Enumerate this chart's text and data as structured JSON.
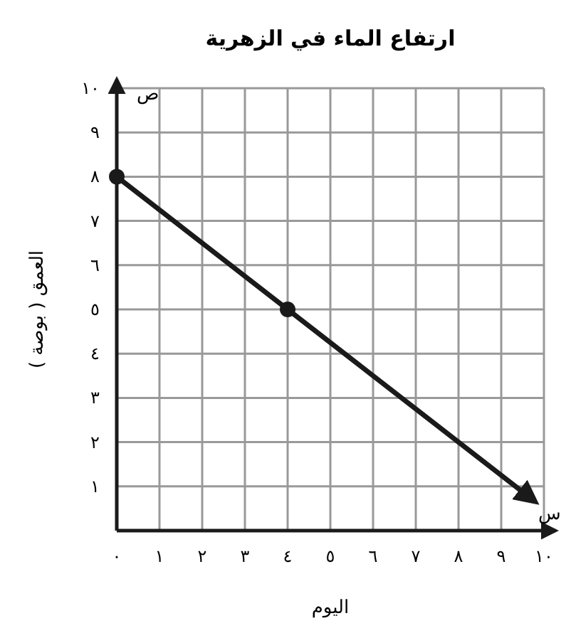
{
  "chart_data": {
    "type": "line",
    "title": "ارتفاع الماء في الزهرية",
    "xlabel": "اليوم",
    "ylabel": "العمق ( بوصة )",
    "annotations": [
      "ص",
      "س"
    ],
    "xlim": [
      0,
      10
    ],
    "ylim": [
      0,
      10
    ],
    "xticks": [
      {
        "value": 0,
        "label": "٠"
      },
      {
        "value": 1,
        "label": "١"
      },
      {
        "value": 2,
        "label": "٢"
      },
      {
        "value": 3,
        "label": "٣"
      },
      {
        "value": 4,
        "label": "٤"
      },
      {
        "value": 5,
        "label": "٥"
      },
      {
        "value": 6,
        "label": "٦"
      },
      {
        "value": 7,
        "label": "٧"
      },
      {
        "value": 8,
        "label": "٨"
      },
      {
        "value": 9,
        "label": "٩"
      },
      {
        "value": 10,
        "label": "١٠"
      }
    ],
    "yticks": [
      {
        "value": 0,
        "label": null
      },
      {
        "value": 1,
        "label": "١"
      },
      {
        "value": 2,
        "label": "٢"
      },
      {
        "value": 3,
        "label": "٣"
      },
      {
        "value": 4,
        "label": "٤"
      },
      {
        "value": 5,
        "label": "٥"
      },
      {
        "value": 6,
        "label": "٦"
      },
      {
        "value": 7,
        "label": "٧"
      },
      {
        "value": 8,
        "label": "٨"
      },
      {
        "value": 9,
        "label": "٩"
      },
      {
        "value": 10,
        "label": "١٠"
      }
    ],
    "grid": true,
    "series": [
      {
        "color": "#1a1a1a",
        "x": [
          0,
          4,
          9.8
        ],
        "values": [
          8,
          5,
          0.65
        ],
        "marker": "none"
      },
      {
        "type": "scatter",
        "color": "#1a1a1a",
        "x": [
          0,
          4
        ],
        "values": [
          8,
          5
        ],
        "marker": "circle"
      }
    ]
  }
}
